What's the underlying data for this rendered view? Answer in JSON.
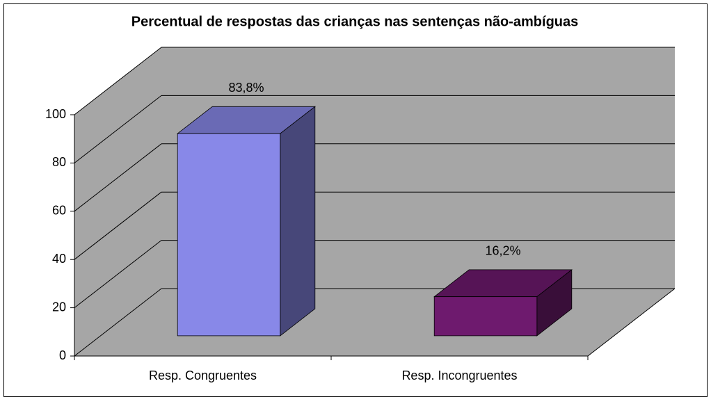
{
  "chart_data": {
    "type": "bar3d",
    "title": "Percentual de respostas das crianças nas sentenças não-ambíguas",
    "categories": [
      "Resp. Congruentes",
      "Resp. Incongruentes"
    ],
    "values": [
      83.8,
      16.2
    ],
    "value_labels": [
      "83,8%",
      "16,2%"
    ],
    "colors": [
      "#8888e8",
      "#6e1a6e"
    ],
    "ylim": [
      0,
      100
    ],
    "yticks": [
      0,
      20,
      40,
      60,
      80,
      100
    ],
    "grid": true
  }
}
